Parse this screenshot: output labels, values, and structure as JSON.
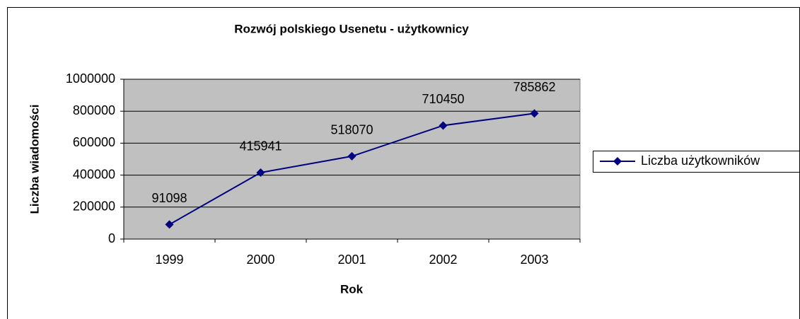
{
  "chart_data": {
    "type": "line",
    "title": "Rozwój polskiego Usenetu - użytkownicy",
    "x_label": "Rok",
    "y_label": "Liczba wiadomości",
    "categories": [
      "1999",
      "2000",
      "2001",
      "2002",
      "2003"
    ],
    "series": [
      {
        "name": "Liczba użytkowników",
        "color": "#000080",
        "values": [
          91098,
          415941,
          518070,
          710450,
          785862
        ]
      }
    ],
    "ylim": [
      0,
      1000000
    ],
    "yticks": [
      0,
      200000,
      400000,
      600000,
      800000,
      1000000
    ],
    "grid": true,
    "data_labels": true,
    "legend": "right"
  }
}
